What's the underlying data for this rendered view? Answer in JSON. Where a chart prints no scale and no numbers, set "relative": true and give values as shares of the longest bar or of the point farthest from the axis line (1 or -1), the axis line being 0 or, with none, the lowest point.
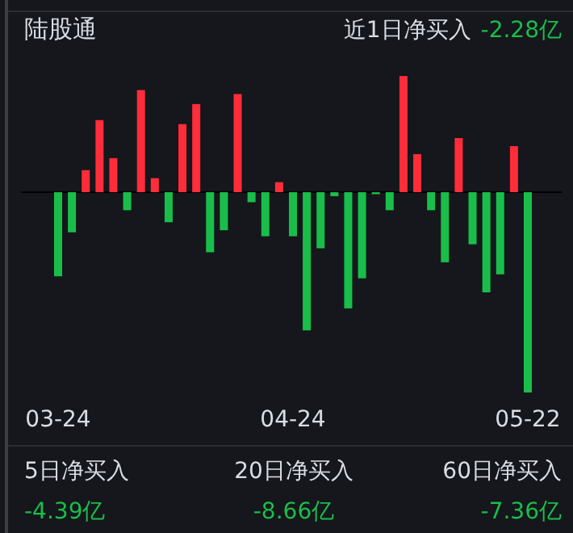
{
  "chart_data": [
    {
      "type": "bar",
      "relative": true,
      "title": "陆股通",
      "categories": [
        "03-24",
        null,
        null,
        null,
        null,
        null,
        null,
        null,
        null,
        null,
        null,
        null,
        null,
        null,
        null,
        null,
        null,
        "04-24",
        null,
        null,
        null,
        null,
        null,
        null,
        null,
        null,
        null,
        null,
        null,
        null,
        null,
        null,
        null,
        null,
        "05-22"
      ],
      "values": [
        -0.42,
        -0.2,
        0.11,
        0.36,
        0.17,
        -0.09,
        0.51,
        0.07,
        -0.15,
        0.34,
        0.44,
        -0.3,
        -0.19,
        0.49,
        -0.05,
        -0.22,
        0.05,
        -0.22,
        -0.69,
        -0.28,
        -0.02,
        -0.58,
        -0.43,
        -0.01,
        -0.09,
        0.58,
        0.19,
        -0.09,
        -0.35,
        0.27,
        -0.26,
        -0.5,
        -0.41,
        0.23,
        -1
      ],
      "colors": [
        "#19be4a",
        "#19be4a",
        "#ff2d3a",
        "#ff2d3a",
        "#ff2d3a",
        "#19be4a",
        "#ff2d3a",
        "#ff2d3a",
        "#19be4a",
        "#ff2d3a",
        "#ff2d3a",
        "#19be4a",
        "#19be4a",
        "#ff2d3a",
        "#19be4a",
        "#19be4a",
        "#ff2d3a",
        "#19be4a",
        "#19be4a",
        "#19be4a",
        "#19be4a",
        "#19be4a",
        "#19be4a",
        "#19be4a",
        "#19be4a",
        "#ff2d3a",
        "#ff2d3a",
        "#19be4a",
        "#19be4a",
        "#ff2d3a",
        "#19be4a",
        "#19be4a",
        "#19be4a",
        "#ff2d3a",
        "#19be4a"
      ]
    },
    {
      "type": "other",
      "annotations": [
        "近1日净买入",
        "-2.28亿"
      ]
    },
    {
      "type": "other",
      "annotations": [
        "5日净买入",
        "-4.39亿",
        "20日净买入",
        "-8.66亿",
        "60日净买入",
        "-7.36亿"
      ]
    }
  ]
}
